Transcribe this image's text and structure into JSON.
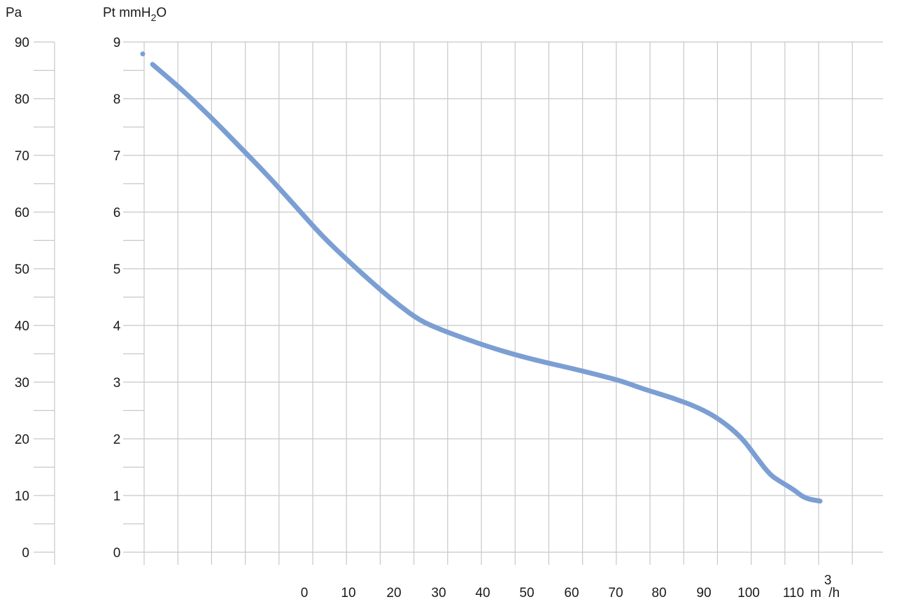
{
  "chart_data": {
    "type": "line",
    "title": "",
    "left_axis_label": "Pa",
    "left_axis_ticks": [
      "90",
      "80",
      "70",
      "60",
      "50",
      "40",
      "30",
      "20",
      "10",
      "0"
    ],
    "right_axis_label": {
      "base": "Pt mmH",
      "sub": "2",
      "tail": "O"
    },
    "right_axis_ticks": [
      "9",
      "8",
      "7",
      "6",
      "5",
      "4",
      "3",
      "2",
      "1",
      "0"
    ],
    "x_label": {
      "base": "m",
      "sup": "3",
      "tail": "/h"
    },
    "x_ticks": [
      "0",
      "10",
      "20",
      "30",
      "40",
      "50",
      "60",
      "70",
      "80",
      "90",
      "100",
      "110"
    ],
    "ylim_pa": [
      0,
      90
    ],
    "ylim_mmh2o": [
      0,
      9
    ],
    "grid": true,
    "series_color": "#7b9fd3",
    "start_marker": {
      "x": -4.4,
      "y": 8.8
    },
    "series": [
      {
        "x": [
          -3.6,
          0,
          5,
          10,
          15,
          20,
          25,
          30,
          35,
          40,
          45,
          50,
          55,
          60,
          65,
          70,
          75,
          80,
          85,
          90,
          95,
          100,
          105,
          110,
          115,
          120
        ],
        "y": [
          8.6,
          8.2,
          7.6,
          7.0,
          6.35,
          5.7,
          5.1,
          4.55,
          4.1,
          3.85,
          3.68,
          3.55,
          3.44,
          3.33,
          3.22,
          3.08,
          2.88,
          2.72,
          2.5,
          2.1,
          1.4,
          1.08,
          0.92,
          null,
          null,
          null
        ]
      }
    ]
  }
}
